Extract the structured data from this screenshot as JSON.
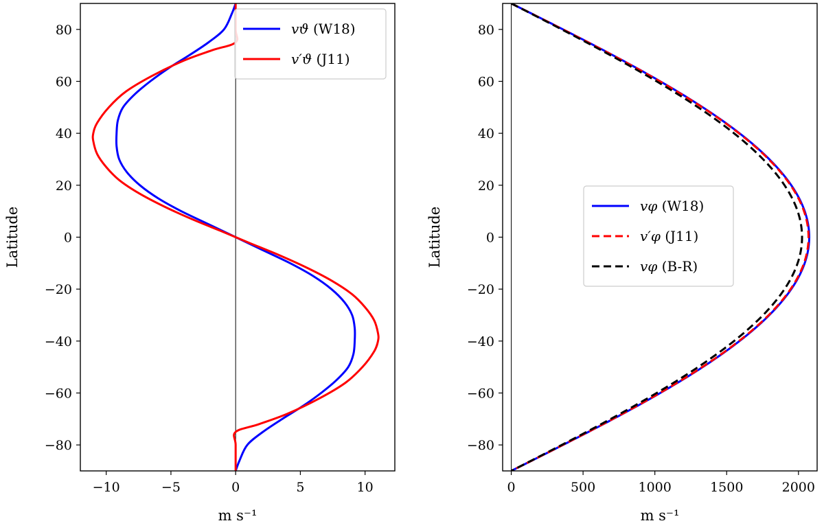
{
  "chart_data": [
    {
      "type": "line",
      "xlabel": "m s⁻¹",
      "ylabel": "Latitude",
      "xlim": [
        -12,
        12.3
      ],
      "ylim": [
        -90,
        90
      ],
      "xticks": [
        -10,
        -5,
        0,
        5,
        10
      ],
      "yticks": [
        -80,
        -60,
        -40,
        -20,
        0,
        20,
        40,
        60,
        80
      ],
      "grid": false,
      "legend_position": "top-right",
      "zero_line_x": 0,
      "series": [
        {
          "name": "v_ϑ (W18)",
          "legend_symbol": "vϑ",
          "legend_suffix": " (W18)",
          "color": "#0000ff",
          "style": "solid",
          "points": [
            [
              0,
              90
            ],
            [
              -0.3,
              86
            ],
            [
              -0.9,
              80
            ],
            [
              -2.1,
              75
            ],
            [
              -3.6,
              70
            ],
            [
              -5.2,
              65
            ],
            [
              -6.6,
              60
            ],
            [
              -7.8,
              55
            ],
            [
              -8.7,
              50
            ],
            [
              -9.1,
              45
            ],
            [
              -9.2,
              40
            ],
            [
              -9.2,
              35
            ],
            [
              -9.0,
              30
            ],
            [
              -8.4,
              25
            ],
            [
              -7.4,
              20
            ],
            [
              -6.0,
              15
            ],
            [
              -4.2,
              10
            ],
            [
              -2.1,
              5
            ],
            [
              0,
              0
            ],
            [
              2.1,
              -5
            ],
            [
              4.2,
              -10
            ],
            [
              6.0,
              -15
            ],
            [
              7.4,
              -20
            ],
            [
              8.4,
              -25
            ],
            [
              9.0,
              -30
            ],
            [
              9.2,
              -35
            ],
            [
              9.2,
              -40
            ],
            [
              9.1,
              -45
            ],
            [
              8.7,
              -50
            ],
            [
              7.8,
              -55
            ],
            [
              6.6,
              -60
            ],
            [
              5.2,
              -65
            ],
            [
              3.6,
              -70
            ],
            [
              2.1,
              -75
            ],
            [
              0.9,
              -80
            ],
            [
              0.3,
              -86
            ],
            [
              0,
              -90
            ]
          ]
        },
        {
          "name": "v′_ϑ (J11)",
          "legend_symbol": "v′ϑ",
          "legend_suffix": " (J11)",
          "color": "#ff0000",
          "style": "solid",
          "points": [
            [
              0,
              90
            ],
            [
              0,
              80
            ],
            [
              0,
              75
            ],
            [
              -1.8,
              72
            ],
            [
              -4.0,
              68
            ],
            [
              -6.5,
              62
            ],
            [
              -8.5,
              56
            ],
            [
              -9.8,
              50
            ],
            [
              -10.7,
              44
            ],
            [
              -11.0,
              40
            ],
            [
              -11.0,
              37
            ],
            [
              -10.7,
              32
            ],
            [
              -10.0,
              27
            ],
            [
              -9.0,
              22
            ],
            [
              -7.5,
              17
            ],
            [
              -5.6,
              12
            ],
            [
              -3.4,
              7
            ],
            [
              -1.2,
              2.5
            ],
            [
              0,
              0
            ],
            [
              1.2,
              -2.5
            ],
            [
              3.4,
              -7
            ],
            [
              5.6,
              -12
            ],
            [
              7.5,
              -17
            ],
            [
              9.0,
              -22
            ],
            [
              10.0,
              -27
            ],
            [
              10.7,
              -32
            ],
            [
              11.0,
              -37
            ],
            [
              11.0,
              -40
            ],
            [
              10.7,
              -44
            ],
            [
              9.8,
              -50
            ],
            [
              8.5,
              -56
            ],
            [
              6.5,
              -62
            ],
            [
              4.0,
              -68
            ],
            [
              1.8,
              -72
            ],
            [
              0,
              -75
            ],
            [
              0,
              -80
            ],
            [
              0,
              -90
            ]
          ]
        }
      ]
    },
    {
      "type": "line",
      "xlabel": "m s⁻¹",
      "ylabel": "Latitude",
      "xlim": [
        -60,
        2130
      ],
      "ylim": [
        -90,
        90
      ],
      "xticks": [
        0,
        500,
        1000,
        1500,
        2000
      ],
      "yticks": [
        -80,
        -60,
        -40,
        -20,
        0,
        20,
        40,
        60,
        80
      ],
      "grid": false,
      "legend_position": "center-right",
      "zero_line_x": 0,
      "series": [
        {
          "name": "v_φ (W18)",
          "legend_symbol": "vφ",
          "legend_suffix": " (W18)",
          "color": "#0000ff",
          "style": "solid",
          "amplitude": 2075
        },
        {
          "name": "v′_φ (J11)",
          "legend_symbol": "v′φ",
          "legend_suffix": " (J11)",
          "color": "#ff0000",
          "style": "dashed",
          "amplitude": 2070
        },
        {
          "name": "v_φ (B-R)",
          "legend_symbol": "vφ",
          "legend_suffix": " (B-R)",
          "color": "#000000",
          "style": "dashed",
          "amplitude": 2025
        }
      ]
    }
  ]
}
